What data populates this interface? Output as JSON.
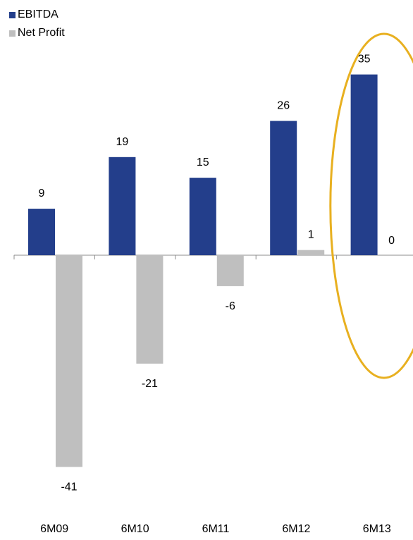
{
  "chart_data": {
    "type": "bar",
    "categories": [
      "6M09",
      "6M10",
      "6M11",
      "6M12",
      "6M13"
    ],
    "series": [
      {
        "name": "EBITDA",
        "values": [
          9,
          19,
          15,
          26,
          35
        ],
        "color": "#233e8b"
      },
      {
        "name": "Net Profit",
        "values": [
          -41,
          -21,
          -6,
          1,
          0
        ],
        "color": "#bfbfbf"
      }
    ],
    "data_labels": [
      [
        "9",
        "19",
        "15",
        "26",
        "35"
      ],
      [
        "-41",
        "-21",
        "-6",
        "1",
        "0"
      ]
    ],
    "ylim": [
      -41,
      35
    ],
    "legend_position": "top-left",
    "grid": false,
    "highlight": {
      "category": "6M13",
      "shape": "ellipse",
      "color": "#e8b020"
    }
  }
}
